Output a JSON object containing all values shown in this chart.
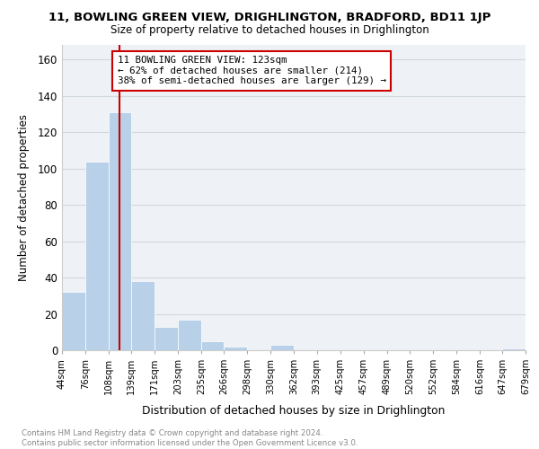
{
  "title": "11, BOWLING GREEN VIEW, DRIGHLINGTON, BRADFORD, BD11 1JP",
  "subtitle": "Size of property relative to detached houses in Drighlington",
  "xlabel": "Distribution of detached houses by size in Drighlington",
  "ylabel": "Number of detached properties",
  "bin_edges": [
    44,
    76,
    108,
    139,
    171,
    203,
    235,
    266,
    298,
    330,
    362,
    393,
    425,
    457,
    489,
    520,
    552,
    584,
    616,
    647,
    679
  ],
  "bar_heights": [
    32,
    104,
    131,
    38,
    13,
    17,
    5,
    2,
    0,
    3,
    0,
    0,
    0,
    0,
    0,
    0,
    0,
    0,
    0,
    1
  ],
  "bar_color": "#b8d0e8",
  "property_line_x": 123,
  "property_line_color": "#cc0000",
  "annotation_text": "11 BOWLING GREEN VIEW: 123sqm\n← 62% of detached houses are smaller (214)\n38% of semi-detached houses are larger (129) →",
  "annotation_box_color": "#ffffff",
  "annotation_box_edge_color": "#cc0000",
  "yticks": [
    0,
    20,
    40,
    60,
    80,
    100,
    120,
    140,
    160
  ],
  "ylim": [
    0,
    168
  ],
  "grid_color": "#d0d8e0",
  "tick_labels": [
    "44sqm",
    "76sqm",
    "108sqm",
    "139sqm",
    "171sqm",
    "203sqm",
    "235sqm",
    "266sqm",
    "298sqm",
    "330sqm",
    "362sqm",
    "393sqm",
    "425sqm",
    "457sqm",
    "489sqm",
    "520sqm",
    "552sqm",
    "584sqm",
    "616sqm",
    "647sqm",
    "679sqm"
  ],
  "footer_text": "Contains HM Land Registry data © Crown copyright and database right 2024.\nContains public sector information licensed under the Open Government Licence v3.0.",
  "bg_color": "#eef2f7"
}
